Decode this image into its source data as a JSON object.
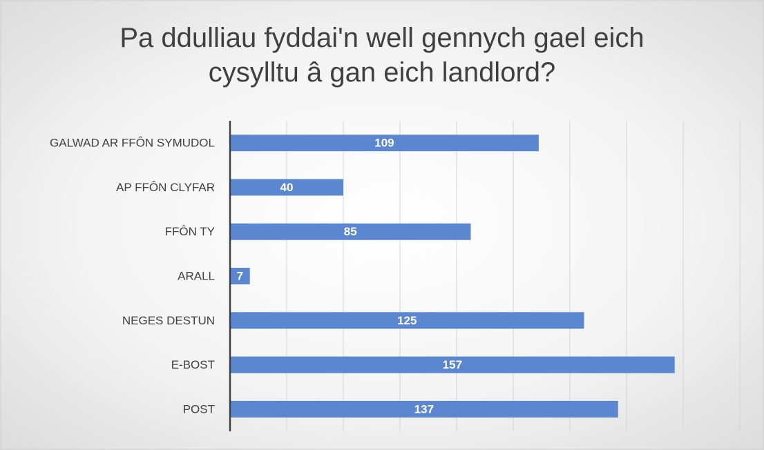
{
  "chart_data": {
    "type": "bar",
    "orientation": "horizontal",
    "title": "Pa ddulliau fyddai'n well gennych gael eich cysylltu â gan eich landlord?",
    "categories": [
      "GALWAD AR FFÔN SYMUDOL",
      "AP FFÔN CLYFAR",
      "FFÔN TY",
      "ARALL",
      "NEGES DESTUN",
      "E-BOST",
      "POST"
    ],
    "values": [
      109,
      40,
      85,
      7,
      125,
      157,
      137
    ],
    "color": "#5b86d0",
    "xlim": [
      0,
      180
    ],
    "xticks": [
      0,
      20,
      40,
      60,
      80,
      100,
      120,
      140,
      160,
      180
    ],
    "grid": true
  }
}
